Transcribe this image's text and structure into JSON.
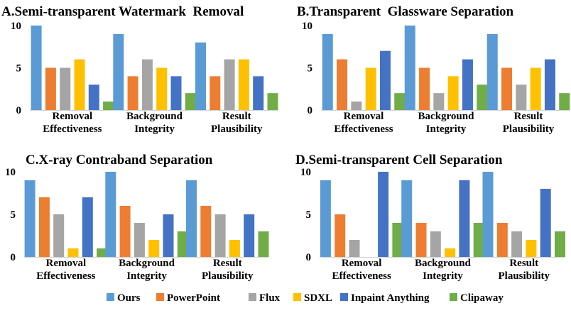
{
  "chart_data": [
    {
      "type": "bar",
      "title": "A.Semi-transparent Watermark  Removal",
      "categories": [
        [
          "Removal",
          "Effectiveness"
        ],
        [
          "Background",
          "Integrity"
        ],
        [
          "Result",
          "Plausibility"
        ]
      ],
      "ylim": [
        0,
        10
      ],
      "yticks": [
        "0",
        "5",
        "10"
      ],
      "grid": false,
      "series": [
        {
          "name": "Ours",
          "values": [
            10,
            9,
            8
          ]
        },
        {
          "name": "PowerPoint",
          "values": [
            5,
            4,
            4
          ]
        },
        {
          "name": "Flux",
          "values": [
            5,
            6,
            6
          ]
        },
        {
          "name": "SDXL",
          "values": [
            6,
            5,
            6
          ]
        },
        {
          "name": "Inpaint Anything",
          "values": [
            3,
            4,
            4
          ]
        },
        {
          "name": "Clipaway",
          "values": [
            1,
            2,
            2
          ]
        }
      ]
    },
    {
      "type": "bar",
      "title": "B.Transparent  Glassware Separation",
      "categories": [
        [
          "Removal",
          "Effectiveness"
        ],
        [
          "Background",
          "Integrity"
        ],
        [
          "Result",
          "Plausibility"
        ]
      ],
      "ylim": [
        0,
        10
      ],
      "yticks": [
        "0",
        "5",
        "10"
      ],
      "grid": false,
      "series": [
        {
          "name": "Ours",
          "values": [
            9,
            10,
            9
          ]
        },
        {
          "name": "PowerPoint",
          "values": [
            6,
            5,
            5
          ]
        },
        {
          "name": "Flux",
          "values": [
            1,
            2,
            3
          ]
        },
        {
          "name": "SDXL",
          "values": [
            5,
            4,
            5
          ]
        },
        {
          "name": "Inpaint Anything",
          "values": [
            7,
            6,
            6
          ]
        },
        {
          "name": "Clipaway",
          "values": [
            2,
            3,
            2
          ]
        }
      ]
    },
    {
      "type": "bar",
      "title": "C.X-ray Contraband Separation",
      "categories": [
        [
          "Removal",
          "Effectiveness"
        ],
        [
          "Background",
          "Integrity"
        ],
        [
          "Result",
          "Plausibility"
        ]
      ],
      "ylim": [
        0,
        10
      ],
      "yticks": [
        "0",
        "5",
        "10"
      ],
      "grid": false,
      "series": [
        {
          "name": "Ours",
          "values": [
            9,
            10,
            9
          ]
        },
        {
          "name": "PowerPoint",
          "values": [
            7,
            6,
            6
          ]
        },
        {
          "name": "Flux",
          "values": [
            5,
            4,
            5
          ]
        },
        {
          "name": "SDXL",
          "values": [
            1,
            2,
            2
          ]
        },
        {
          "name": "Inpaint Anything",
          "values": [
            7,
            5,
            5
          ]
        },
        {
          "name": "Clipaway",
          "values": [
            1,
            3,
            3
          ]
        }
      ]
    },
    {
      "type": "bar",
      "title": "D.Semi-transparent Cell Separation",
      "categories": [
        [
          "Removal",
          "Effectiveness"
        ],
        [
          "Background",
          "Integrity"
        ],
        [
          "Result",
          "Plausibility"
        ]
      ],
      "ylim": [
        0,
        10
      ],
      "yticks": [
        "0",
        "5",
        "10"
      ],
      "grid": false,
      "series": [
        {
          "name": "Ours",
          "values": [
            9,
            9,
            10
          ]
        },
        {
          "name": "PowerPoint",
          "values": [
            5,
            4,
            4
          ]
        },
        {
          "name": "Flux",
          "values": [
            2,
            3,
            3
          ]
        },
        {
          "name": "SDXL",
          "values": [
            0,
            1,
            2
          ]
        },
        {
          "name": "Inpaint Anything",
          "values": [
            10,
            9,
            8
          ]
        },
        {
          "name": "Clipaway",
          "values": [
            4,
            4,
            3
          ]
        }
      ]
    }
  ],
  "legend": {
    "position": "bottom",
    "items": [
      {
        "name": "Ours",
        "color": "#5B9BD5"
      },
      {
        "name": "PowerPoint",
        "color": "#ED7D31"
      },
      {
        "name": "Flux",
        "color": "#A5A5A5"
      },
      {
        "name": "SDXL",
        "color": "#FFC000"
      },
      {
        "name": "Inpaint Anything",
        "color": "#4472C4"
      },
      {
        "name": "Clipaway",
        "color": "#70AD47"
      }
    ]
  }
}
